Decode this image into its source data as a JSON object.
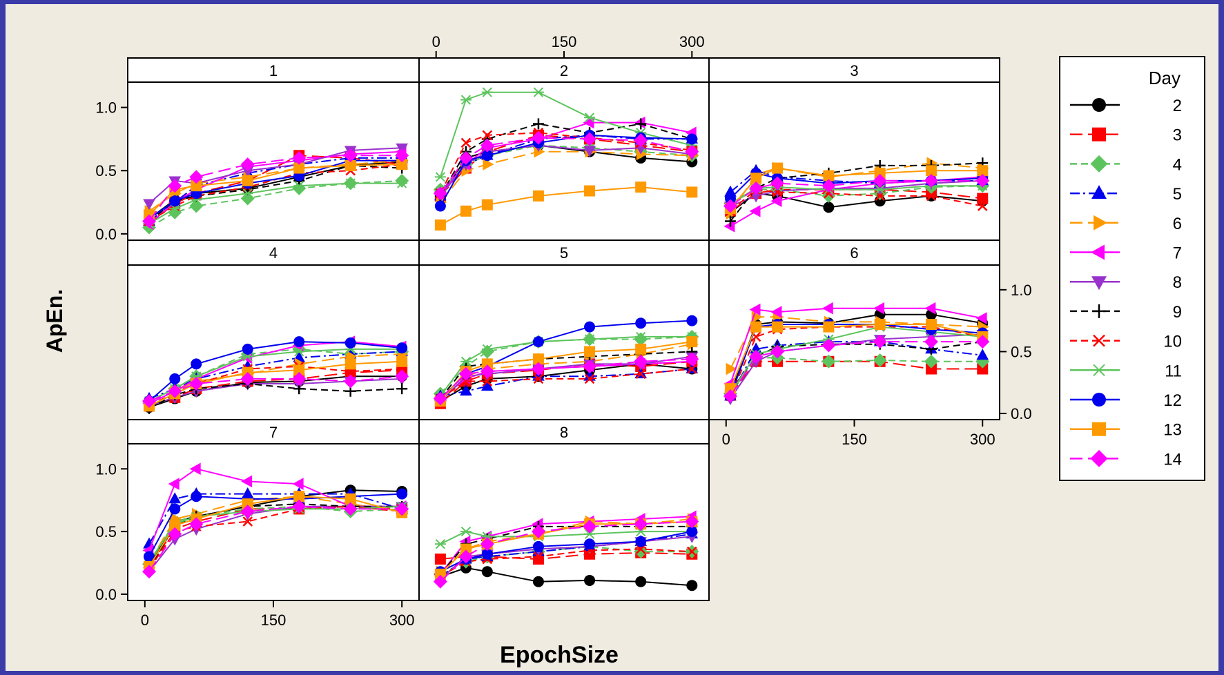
{
  "colors": {
    "background": "#efebe1",
    "border": "#3a3aa8"
  },
  "chart_data": {
    "type": "line",
    "xlabel": "EpochSize",
    "ylabel": "ApEn.",
    "x": [
      5,
      35,
      60,
      120,
      180,
      240,
      300
    ],
    "xlim": [
      -20,
      320
    ],
    "ylim": [
      -0.05,
      1.2
    ],
    "xticks": [
      "0",
      "150",
      "300"
    ],
    "yticks": [
      "0.0",
      "0.5",
      "1.0"
    ],
    "legend": {
      "title": "Day",
      "placement": "right"
    },
    "series_styles": [
      {
        "name": "2",
        "color": "#000000",
        "marker": "circle",
        "dash": "solid"
      },
      {
        "name": "3",
        "color": "#ff0000",
        "marker": "square",
        "dash": "longdash"
      },
      {
        "name": "4",
        "color": "#5dc45d",
        "marker": "diamond",
        "dash": "dash"
      },
      {
        "name": "5",
        "color": "#0000ee",
        "marker": "triangle-up",
        "dash": "dashdot"
      },
      {
        "name": "6",
        "color": "#ff9900",
        "marker": "triangle-right",
        "dash": "longdash"
      },
      {
        "name": "7",
        "color": "#ff00ff",
        "marker": "triangle-left",
        "dash": "solid"
      },
      {
        "name": "8",
        "color": "#9932cc",
        "marker": "triangle-down",
        "dash": "solid"
      },
      {
        "name": "9",
        "color": "#000000",
        "marker": "plus",
        "dash": "dash"
      },
      {
        "name": "10",
        "color": "#ff0000",
        "marker": "x",
        "dash": "dash"
      },
      {
        "name": "11",
        "color": "#5dc45d",
        "marker": "star",
        "dash": "solid"
      },
      {
        "name": "12",
        "color": "#0000ee",
        "marker": "circle",
        "dash": "solid"
      },
      {
        "name": "13",
        "color": "#ff9900",
        "marker": "square",
        "dash": "solid"
      },
      {
        "name": "14",
        "color": "#ff00ff",
        "marker": "diamond",
        "dash": "longdash"
      }
    ],
    "panels": [
      {
        "label": "1",
        "series": [
          [
            0.12,
            0.27,
            0.32,
            0.36,
            0.45,
            0.54,
            0.57
          ],
          [
            0.08,
            0.24,
            0.32,
            0.42,
            0.62,
            0.6,
            0.55
          ],
          [
            0.05,
            0.17,
            0.22,
            0.28,
            0.36,
            0.4,
            0.42
          ],
          [
            0.1,
            0.25,
            0.38,
            0.48,
            0.55,
            0.6,
            0.6
          ],
          [
            0.18,
            0.32,
            0.4,
            0.45,
            0.52,
            0.55,
            0.58
          ],
          [
            0.08,
            0.25,
            0.35,
            0.53,
            0.58,
            0.63,
            0.65
          ],
          [
            0.24,
            0.42,
            0.4,
            0.5,
            0.55,
            0.66,
            0.68
          ],
          [
            0.1,
            0.26,
            0.3,
            0.35,
            0.42,
            0.54,
            0.52
          ],
          [
            0.1,
            0.22,
            0.3,
            0.37,
            0.48,
            0.5,
            0.55
          ],
          [
            0.08,
            0.2,
            0.27,
            0.32,
            0.38,
            0.4,
            0.4
          ],
          [
            0.12,
            0.26,
            0.32,
            0.4,
            0.46,
            0.58,
            0.58
          ],
          [
            0.15,
            0.35,
            0.38,
            0.42,
            0.52,
            0.54,
            0.55
          ],
          [
            0.1,
            0.38,
            0.45,
            0.55,
            0.6,
            0.62,
            0.62
          ]
        ]
      },
      {
        "label": "2",
        "series": [
          [
            0.28,
            0.6,
            0.65,
            0.7,
            0.65,
            0.6,
            0.57
          ],
          [
            0.3,
            0.52,
            0.65,
            0.78,
            0.75,
            0.7,
            0.65
          ],
          [
            0.35,
            0.55,
            0.62,
            0.7,
            0.68,
            0.65,
            0.62
          ],
          [
            0.3,
            0.55,
            0.62,
            0.75,
            0.78,
            0.75,
            0.75
          ],
          [
            0.25,
            0.5,
            0.55,
            0.65,
            0.65,
            0.63,
            0.62
          ],
          [
            0.32,
            0.55,
            0.68,
            0.75,
            0.88,
            0.88,
            0.8
          ],
          [
            0.3,
            0.55,
            0.65,
            0.7,
            0.66,
            0.68,
            0.63
          ],
          [
            0.3,
            0.65,
            0.75,
            0.87,
            0.8,
            0.87,
            0.75
          ],
          [
            0.32,
            0.72,
            0.78,
            0.8,
            0.76,
            0.72,
            0.66
          ],
          [
            0.45,
            1.06,
            1.12,
            1.12,
            0.92,
            0.8,
            0.7
          ],
          [
            0.22,
            0.58,
            0.62,
            0.72,
            0.78,
            0.76,
            0.75
          ],
          [
            0.07,
            0.18,
            0.23,
            0.3,
            0.34,
            0.37,
            0.33
          ],
          [
            0.32,
            0.6,
            0.7,
            0.76,
            0.75,
            0.74,
            0.65
          ]
        ]
      },
      {
        "label": "3",
        "series": [
          [
            0.17,
            0.32,
            0.3,
            0.21,
            0.26,
            0.3,
            0.26
          ],
          [
            0.18,
            0.32,
            0.35,
            0.35,
            0.35,
            0.33,
            0.28
          ],
          [
            0.24,
            0.35,
            0.35,
            0.3,
            0.32,
            0.37,
            0.38
          ],
          [
            0.33,
            0.5,
            0.45,
            0.42,
            0.4,
            0.42,
            0.42
          ],
          [
            0.16,
            0.47,
            0.52,
            0.45,
            0.5,
            0.56,
            0.52
          ],
          [
            0.06,
            0.18,
            0.26,
            0.35,
            0.4,
            0.42,
            0.45
          ],
          [
            0.22,
            0.3,
            0.34,
            0.36,
            0.36,
            0.4,
            0.42
          ],
          [
            0.1,
            0.36,
            0.44,
            0.48,
            0.54,
            0.54,
            0.56
          ],
          [
            0.18,
            0.35,
            0.33,
            0.32,
            0.3,
            0.3,
            0.22
          ],
          [
            0.24,
            0.36,
            0.37,
            0.35,
            0.35,
            0.38,
            0.38
          ],
          [
            0.28,
            0.48,
            0.44,
            0.4,
            0.42,
            0.42,
            0.44
          ],
          [
            0.2,
            0.44,
            0.52,
            0.46,
            0.48,
            0.5,
            0.5
          ],
          [
            0.22,
            0.36,
            0.4,
            0.38,
            0.42,
            0.42,
            0.42
          ]
        ]
      },
      {
        "label": "4",
        "series": [
          [
            0.05,
            0.12,
            0.18,
            0.25,
            0.26,
            0.3,
            0.3
          ],
          [
            0.06,
            0.13,
            0.2,
            0.26,
            0.28,
            0.33,
            0.35
          ],
          [
            0.1,
            0.2,
            0.3,
            0.48,
            0.52,
            0.48,
            0.5
          ],
          [
            0.12,
            0.2,
            0.28,
            0.38,
            0.45,
            0.48,
            0.5
          ],
          [
            0.08,
            0.18,
            0.26,
            0.32,
            0.4,
            0.46,
            0.48
          ],
          [
            0.08,
            0.18,
            0.28,
            0.45,
            0.55,
            0.58,
            0.54
          ],
          [
            0.06,
            0.13,
            0.18,
            0.24,
            0.24,
            0.26,
            0.28
          ],
          [
            0.04,
            0.15,
            0.2,
            0.24,
            0.2,
            0.18,
            0.2
          ],
          [
            0.07,
            0.16,
            0.24,
            0.36,
            0.38,
            0.34,
            0.36
          ],
          [
            0.1,
            0.2,
            0.3,
            0.46,
            0.5,
            0.52,
            0.52
          ],
          [
            0.1,
            0.28,
            0.4,
            0.52,
            0.58,
            0.57,
            0.53
          ],
          [
            0.06,
            0.16,
            0.24,
            0.33,
            0.35,
            0.4,
            0.42
          ],
          [
            0.1,
            0.18,
            0.24,
            0.28,
            0.28,
            0.26,
            0.3
          ]
        ]
      },
      {
        "label": "5",
        "series": [
          [
            0.1,
            0.22,
            0.28,
            0.3,
            0.35,
            0.4,
            0.36
          ],
          [
            0.08,
            0.26,
            0.32,
            0.35,
            0.4,
            0.38,
            0.42
          ],
          [
            0.16,
            0.38,
            0.5,
            0.58,
            0.6,
            0.6,
            0.62
          ],
          [
            0.14,
            0.18,
            0.22,
            0.3,
            0.3,
            0.32,
            0.36
          ],
          [
            0.1,
            0.3,
            0.36,
            0.4,
            0.42,
            0.48,
            0.56
          ],
          [
            0.12,
            0.28,
            0.34,
            0.36,
            0.38,
            0.4,
            0.42
          ],
          [
            0.1,
            0.3,
            0.32,
            0.36,
            0.4,
            0.4,
            0.46
          ],
          [
            0.12,
            0.38,
            0.4,
            0.44,
            0.46,
            0.48,
            0.5
          ],
          [
            0.12,
            0.26,
            0.26,
            0.28,
            0.28,
            0.32,
            0.36
          ],
          [
            0.14,
            0.42,
            0.52,
            0.58,
            0.6,
            0.62,
            0.62
          ],
          [
            0.12,
            0.32,
            0.38,
            0.58,
            0.7,
            0.73,
            0.75
          ],
          [
            0.1,
            0.34,
            0.4,
            0.44,
            0.5,
            0.52,
            0.58
          ],
          [
            0.12,
            0.32,
            0.34,
            0.36,
            0.38,
            0.42,
            0.44
          ]
        ]
      },
      {
        "label": "6",
        "series": [
          [
            0.16,
            0.72,
            0.74,
            0.73,
            0.8,
            0.8,
            0.73
          ],
          [
            0.15,
            0.42,
            0.42,
            0.42,
            0.42,
            0.36,
            0.36
          ],
          [
            0.16,
            0.45,
            0.45,
            0.42,
            0.43,
            0.42,
            0.42
          ],
          [
            0.14,
            0.52,
            0.55,
            0.58,
            0.58,
            0.52,
            0.47
          ],
          [
            0.36,
            0.78,
            0.78,
            0.74,
            0.74,
            0.72,
            0.7
          ],
          [
            0.24,
            0.84,
            0.82,
            0.85,
            0.85,
            0.85,
            0.77
          ],
          [
            0.12,
            0.42,
            0.5,
            0.55,
            0.6,
            0.62,
            0.64
          ],
          [
            0.18,
            0.46,
            0.54,
            0.56,
            0.56,
            0.52,
            0.58
          ],
          [
            0.14,
            0.62,
            0.68,
            0.7,
            0.7,
            0.7,
            0.62
          ],
          [
            0.16,
            0.48,
            0.52,
            0.6,
            0.7,
            0.66,
            0.62
          ],
          [
            0.14,
            0.7,
            0.72,
            0.72,
            0.72,
            0.68,
            0.65
          ],
          [
            0.2,
            0.7,
            0.7,
            0.7,
            0.72,
            0.72,
            0.62
          ],
          [
            0.14,
            0.46,
            0.5,
            0.55,
            0.58,
            0.58,
            0.58
          ]
        ]
      },
      {
        "label": "7",
        "series": [
          [
            0.22,
            0.58,
            0.62,
            0.7,
            0.78,
            0.83,
            0.82
          ],
          [
            0.22,
            0.52,
            0.58,
            0.68,
            0.68,
            0.7,
            0.68
          ],
          [
            0.24,
            0.58,
            0.62,
            0.68,
            0.7,
            0.66,
            0.68
          ],
          [
            0.4,
            0.76,
            0.8,
            0.8,
            0.8,
            0.8,
            0.68
          ],
          [
            0.25,
            0.6,
            0.64,
            0.75,
            0.78,
            0.72,
            0.66
          ],
          [
            0.35,
            0.88,
            1.0,
            0.9,
            0.88,
            0.7,
            0.7
          ],
          [
            0.18,
            0.44,
            0.52,
            0.64,
            0.7,
            0.7,
            0.7
          ],
          [
            0.2,
            0.55,
            0.62,
            0.7,
            0.72,
            0.7,
            0.7
          ],
          [
            0.2,
            0.5,
            0.54,
            0.58,
            0.68,
            0.7,
            0.66
          ],
          [
            0.26,
            0.56,
            0.62,
            0.66,
            0.68,
            0.68,
            0.7
          ],
          [
            0.3,
            0.68,
            0.78,
            0.76,
            0.76,
            0.78,
            0.8
          ],
          [
            0.22,
            0.55,
            0.6,
            0.72,
            0.78,
            0.76,
            0.65
          ],
          [
            0.18,
            0.48,
            0.56,
            0.66,
            0.7,
            0.68,
            0.68
          ]
        ]
      },
      {
        "label": "8",
        "series": [
          [
            0.14,
            0.21,
            0.18,
            0.1,
            0.11,
            0.1,
            0.07
          ],
          [
            0.28,
            0.3,
            0.3,
            0.28,
            0.32,
            0.33,
            0.32
          ],
          [
            0.16,
            0.26,
            0.3,
            0.34,
            0.38,
            0.34,
            0.34
          ],
          [
            0.14,
            0.28,
            0.3,
            0.34,
            0.38,
            0.42,
            0.48
          ],
          [
            0.18,
            0.36,
            0.42,
            0.48,
            0.58,
            0.56,
            0.6
          ],
          [
            0.16,
            0.42,
            0.46,
            0.56,
            0.58,
            0.6,
            0.62
          ],
          [
            0.12,
            0.3,
            0.32,
            0.36,
            0.38,
            0.42,
            0.46
          ],
          [
            0.16,
            0.4,
            0.44,
            0.54,
            0.54,
            0.54,
            0.54
          ],
          [
            0.14,
            0.26,
            0.28,
            0.3,
            0.35,
            0.36,
            0.34
          ],
          [
            0.4,
            0.5,
            0.46,
            0.46,
            0.48,
            0.5,
            0.5
          ],
          [
            0.18,
            0.28,
            0.32,
            0.38,
            0.4,
            0.42,
            0.5
          ],
          [
            0.16,
            0.36,
            0.4,
            0.48,
            0.56,
            0.56,
            0.58
          ],
          [
            0.1,
            0.3,
            0.4,
            0.5,
            0.54,
            0.56,
            0.58
          ]
        ]
      }
    ]
  }
}
